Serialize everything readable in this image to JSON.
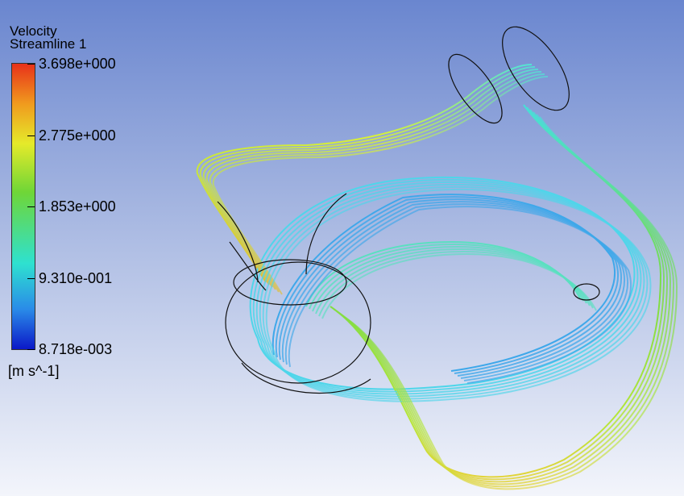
{
  "legend": {
    "title": "Velocity",
    "subtitle": "Streamline 1",
    "ticks": [
      "3.698e+000",
      "2.775e+000",
      "1.853e+000",
      "9.310e-001",
      "8.718e-003"
    ],
    "unit": "[m s^-1]"
  }
}
